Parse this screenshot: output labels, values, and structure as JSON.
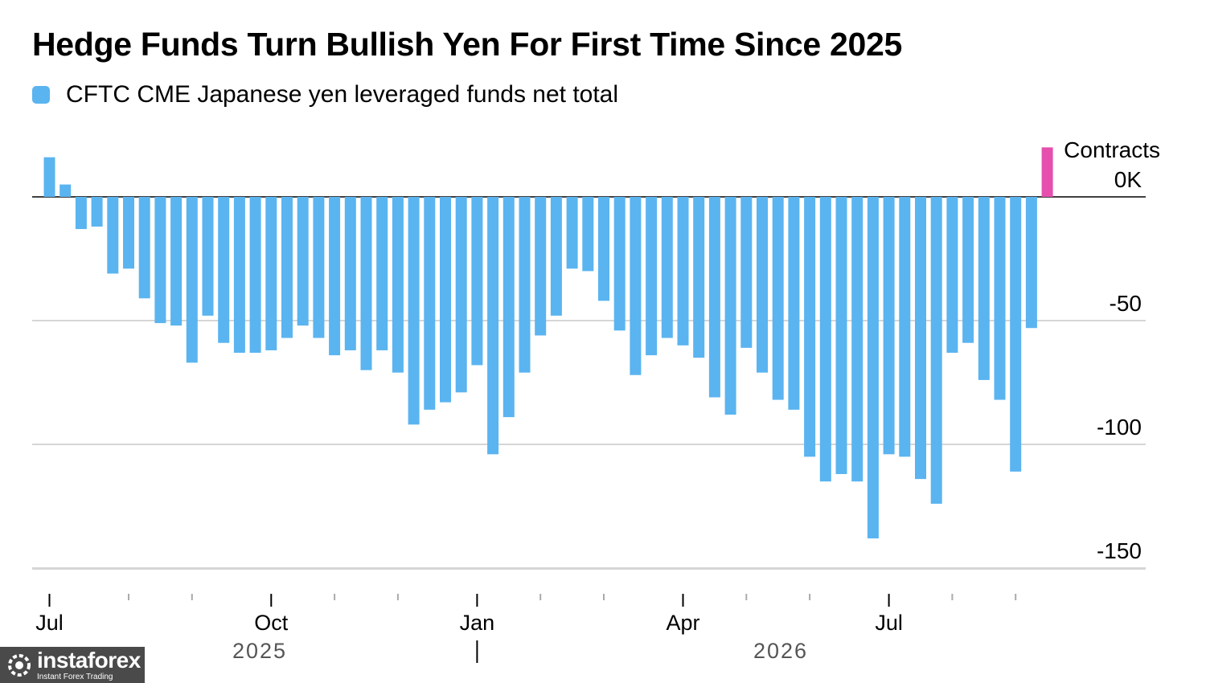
{
  "chart_data": {
    "type": "bar",
    "title": "Hedge Funds Turn Bullish Yen For First Time Since 2025",
    "legend": [
      {
        "name": "CFTC CME Japanese yen leveraged funds net total",
        "color": "#5ab4f0"
      }
    ],
    "unit_label": "Contracts",
    "ylim": [
      -150,
      20
    ],
    "yticks": [
      {
        "value": 0,
        "label": "0K"
      },
      {
        "value": -50,
        "label": "-50"
      },
      {
        "value": -100,
        "label": "-100"
      },
      {
        "value": -150,
        "label": "-150"
      }
    ],
    "xtick_labels": [
      "Jul",
      "Oct",
      "Jan",
      "Apr",
      "Jul"
    ],
    "year_labels": [
      "2025",
      "2026"
    ],
    "values": [
      16,
      5,
      -13,
      -12,
      -31,
      -29,
      -41,
      -51,
      -52,
      -67,
      -48,
      -59,
      -63,
      -63,
      -62,
      -57,
      -52,
      -57,
      -64,
      -62,
      -70,
      -62,
      -71,
      -92,
      -86,
      -83,
      -79,
      -68,
      -104,
      -89,
      -71,
      -56,
      -48,
      -29,
      -30,
      -42,
      -54,
      -72,
      -64,
      -57,
      -60,
      -65,
      -81,
      -88,
      -61,
      -71,
      -82,
      -86,
      -105,
      -115,
      -112,
      -115,
      -138,
      -104,
      -105,
      -114,
      -124,
      -63,
      -59,
      -74,
      -82,
      -111,
      -53,
      20
    ],
    "colors": {
      "negative": "#5ab4f0",
      "latest": "#e64fae"
    },
    "grid": true
  },
  "watermark": {
    "brand": "instaforex",
    "tagline": "Instant Forex Trading"
  }
}
